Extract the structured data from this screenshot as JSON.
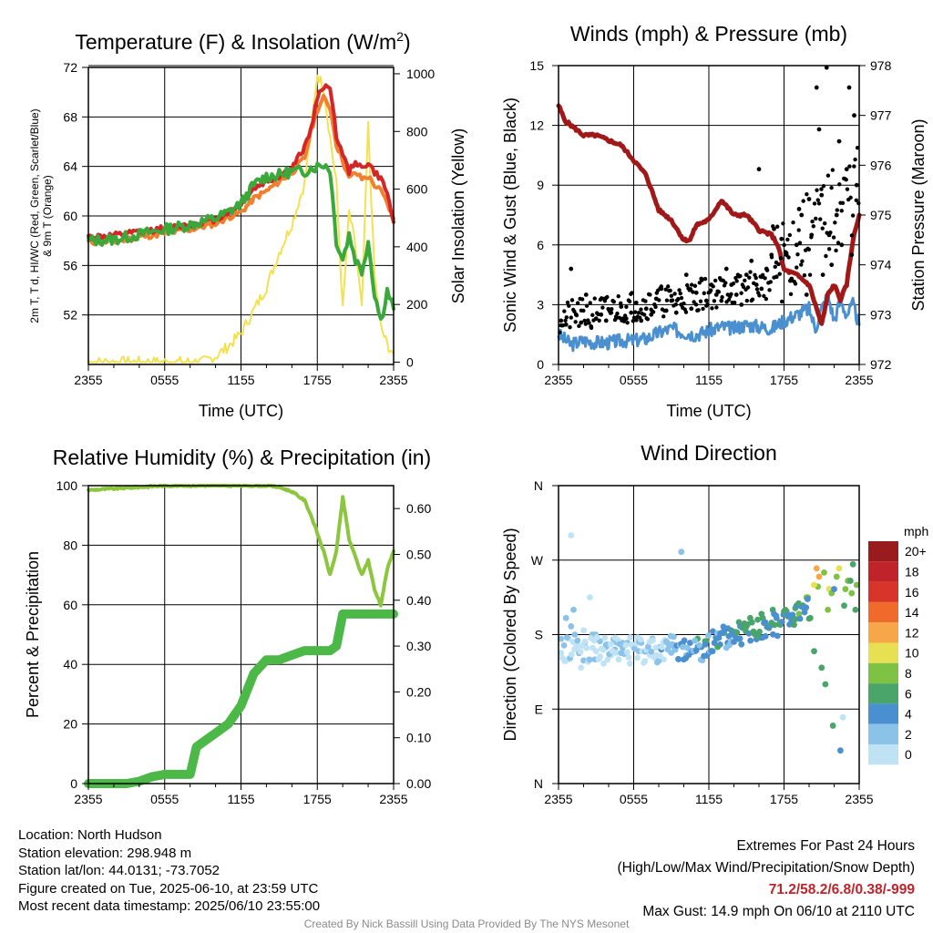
{
  "panels": {
    "temp": {
      "title": "Temperature (F) & Insolation (W/m",
      "title_sup": "2",
      "title_end": ")",
      "ylabel_lines": [
        "2m T, T d, HI/WC (Red, Green, Scarlet/Blue)",
        "& 9m T (Orange)"
      ],
      "ylabel_right": "Solar Insolation (Yellow)",
      "xlabel": "Time (UTC)"
    },
    "wind": {
      "title": "Winds (mph) & Pressure (mb)",
      "ylabel_left": "Sonic Wind & Gust (Blue, Black)",
      "ylabel_right": "Station Pressure (Maroon)",
      "xlabel": "Time (UTC)"
    },
    "rh": {
      "title": "Relative Humidity (%) & Precipitation (in)",
      "ylabel_left": "Percent & Precipitation"
    },
    "dir": {
      "title": "Wind Direction",
      "ylabel_left": "Direction (Colored By Speed)"
    }
  },
  "info": {
    "location": "Location: North Hudson",
    "elevation": "Station elevation: 298.948 m",
    "latlon": "Station lat/lon: 44.0131; -73.7052",
    "created": "Figure created on Tue, 2025-06-10, at 23:59 UTC",
    "recent": "Most recent data timestamp: 2025/06/10 23:55:00"
  },
  "extremes": {
    "line1": "Extremes For Past 24 Hours",
    "line2": "(High/Low/Max Wind/Precipitation/Snow Depth)",
    "values": "71.2/58.2/6.8/0.38/-999",
    "gust": "Max Gust: 14.9 mph On 06/10 at 2110 UTC"
  },
  "credit": "Created By Nick Bassill Using Data Provided By The NYS Mesonet",
  "colors": {
    "temp": "#d42626",
    "dewpoint": "#3aa83a",
    "temp9m": "#f08030",
    "solar": "#f2e150",
    "wind": "#4a90d0",
    "gust": "#000000",
    "pressure": "#a01818",
    "rh": "#8cc63f",
    "precip": "#4cb848"
  },
  "chart_data": [
    {
      "type": "line",
      "panel": "temp",
      "x_ticks": [
        "2355",
        "0555",
        "1155",
        "1755",
        "2355"
      ],
      "ylim": [
        48,
        72
      ],
      "y_ticks": [
        52,
        56,
        60,
        64,
        68,
        72
      ],
      "y2lim": [
        0,
        1000
      ],
      "y2_ticks": [
        0,
        200,
        400,
        600,
        800,
        1000
      ],
      "x_hours": [
        0,
        2,
        4,
        6,
        8,
        10,
        11,
        12,
        13,
        14,
        15,
        16,
        17,
        17.5,
        18,
        18.5,
        19,
        19.5,
        20,
        20.5,
        21,
        21.5,
        22,
        22.5,
        23,
        23.5,
        24
      ],
      "series": [
        {
          "key": "temp",
          "values": [
            58.3,
            58.4,
            58.7,
            59.0,
            59.3,
            59.7,
            60.3,
            61.0,
            62.2,
            62.8,
            63.2,
            63.8,
            65.6,
            67.0,
            69.5,
            70.5,
            70.5,
            66.5,
            65.0,
            63.5,
            64.5,
            63.8,
            64.3,
            63.5,
            63.0,
            61.8,
            59.5
          ]
        },
        {
          "key": "dewpoint",
          "values": [
            58.0,
            58.1,
            58.5,
            58.9,
            59.3,
            59.8,
            60.3,
            61.0,
            62.5,
            63.2,
            63.3,
            63.6,
            63.6,
            63.9,
            64.0,
            64.2,
            63.8,
            58.0,
            56.5,
            58.5,
            56.5,
            55.5,
            58.0,
            53.8,
            51.5,
            54.0,
            52.5
          ]
        },
        {
          "key": "temp9m",
          "values": [
            57.9,
            57.9,
            58.3,
            58.6,
            58.9,
            59.4,
            59.9,
            60.3,
            61.4,
            62.0,
            62.8,
            63.5,
            64.7,
            66.8,
            68.6,
            69.5,
            68.8,
            65.8,
            64.5,
            63.0,
            63.5,
            63.0,
            63.2,
            62.5,
            62.0,
            61.0,
            59.8
          ]
        }
      ],
      "solar": {
        "x_hours": [
          0,
          6,
          9,
          10,
          11,
          12,
          13,
          14,
          15,
          16,
          17,
          17.5,
          18,
          18.5,
          19,
          19.5,
          20,
          20.5,
          21,
          21.5,
          22,
          22.5,
          23,
          23.5,
          24
        ],
        "values": [
          0,
          0,
          0,
          20,
          55,
          100,
          180,
          260,
          380,
          480,
          620,
          800,
          1000,
          950,
          780,
          620,
          180,
          520,
          400,
          180,
          820,
          300,
          120,
          60,
          30
        ]
      }
    },
    {
      "type": "line",
      "panel": "wind",
      "x_ticks": [
        "2355",
        "0555",
        "1155",
        "1755",
        "2355"
      ],
      "ylim": [
        0,
        15
      ],
      "y_ticks": [
        0,
        3,
        6,
        9,
        12,
        15
      ],
      "y2lim": [
        972,
        978
      ],
      "y2_ticks": [
        972,
        973,
        974,
        975,
        976,
        977,
        978
      ],
      "pressure": {
        "x_hours": [
          0,
          0.5,
          1,
          2,
          3,
          4,
          5,
          6,
          7,
          8,
          9,
          10,
          10.5,
          11,
          12,
          13,
          14,
          15,
          16,
          17,
          17.5,
          18,
          19,
          19.5,
          20,
          20.5,
          21,
          21.5,
          22,
          22.5,
          23,
          23.5,
          24
        ],
        "values": [
          977.2,
          976.9,
          976.8,
          976.6,
          976.6,
          976.5,
          976.4,
          976.1,
          975.8,
          975.1,
          974.9,
          974.5,
          974.5,
          974.8,
          974.9,
          975.3,
          975.0,
          975.0,
          974.7,
          974.6,
          974.4,
          973.9,
          973.8,
          973.7,
          973.6,
          973.2,
          972.8,
          973.4,
          973.6,
          973.3,
          973.6,
          974.5,
          975.0
        ]
      },
      "wind": {
        "x_hours": [
          0,
          1,
          2,
          3,
          4,
          5,
          6,
          7,
          8,
          9,
          10,
          11,
          12,
          13,
          14,
          15,
          16,
          17,
          18,
          19,
          20,
          20.5,
          21,
          21.5,
          22,
          22.5,
          23,
          23.5,
          24
        ],
        "values": [
          1.5,
          1.0,
          1.2,
          1.1,
          1.1,
          1.2,
          1.2,
          1.3,
          1.6,
          1.8,
          1.6,
          1.5,
          1.7,
          1.9,
          1.8,
          2.0,
          1.9,
          1.8,
          2.2,
          2.5,
          2.8,
          1.8,
          2.8,
          3.5,
          2.2,
          3.2,
          2.5,
          3.0,
          2.0
        ]
      },
      "gust": {
        "x_hours": [
          0.2,
          0.6,
          1.0,
          1.4,
          1.8,
          2.2,
          2.6,
          3.0,
          3.4,
          3.8,
          4.2,
          4.6,
          5.0,
          5.4,
          5.8,
          6.2,
          6.6,
          7.0,
          7.4,
          7.8,
          8.2,
          8.6,
          9.0,
          9.4,
          9.8,
          10.2,
          10.6,
          11.0,
          11.4,
          11.8,
          12.2,
          12.6,
          13.0,
          13.4,
          13.8,
          14.2,
          14.6,
          15.0,
          15.4,
          15.8,
          16.2,
          16.6,
          17.0,
          17.4,
          17.8,
          18.2,
          18.6,
          19.0,
          19.4,
          19.8,
          20.2,
          20.6,
          21.0,
          21.4,
          21.8,
          22.2,
          22.6,
          23.0,
          23.4,
          23.8,
          18.5,
          19.2,
          20.0,
          21.1,
          21.6,
          22.4,
          23.2,
          23.6,
          16.0,
          17.2,
          20.8
        ],
        "values": [
          2.2,
          2.0,
          4.8,
          2.5,
          2.1,
          3.5,
          1.9,
          2.3,
          2.5,
          2.2,
          2.6,
          2.4,
          2.9,
          2.3,
          2.6,
          3.1,
          2.2,
          2.8,
          2.5,
          3.3,
          3.8,
          2.7,
          3.2,
          2.6,
          3.0,
          4.5,
          2.8,
          3.6,
          4.3,
          3.2,
          4.0,
          3.5,
          3.2,
          4.8,
          4.0,
          3.5,
          3.0,
          4.5,
          5.2,
          4.0,
          3.8,
          4.8,
          5.5,
          4.4,
          6.3,
          5.5,
          4.3,
          6.0,
          7.5,
          3.5,
          6.5,
          13.9,
          8.5,
          14.9,
          5.0,
          7.5,
          6.0,
          9.8,
          5.5,
          9.0,
          4.2,
          7.8,
          8.3,
          4.5,
          6.5,
          11.2,
          13.9,
          12.5,
          9.8,
          6.8,
          11.8
        ]
      }
    },
    {
      "type": "line",
      "panel": "rh",
      "x_ticks": [
        "2355",
        "0555",
        "1155",
        "1755",
        "2355"
      ],
      "ylim": [
        0,
        100
      ],
      "y_ticks": [
        0,
        20,
        40,
        60,
        80,
        100
      ],
      "y2lim": [
        0,
        0.65
      ],
      "y2_ticks": [
        "0.00",
        "0.10",
        "0.20",
        "0.30",
        "0.40",
        "0.50",
        "0.60"
      ],
      "rh": {
        "x_hours": [
          0,
          2,
          4,
          6,
          8,
          10,
          12,
          14,
          15,
          16,
          17,
          17.5,
          18,
          18.5,
          19,
          19.5,
          20,
          20.5,
          21,
          21.5,
          22,
          22.5,
          23,
          23.5,
          24
        ],
        "values": [
          98.5,
          99,
          99.5,
          100,
          100,
          100,
          100,
          100,
          99.5,
          98,
          95,
          90,
          84,
          78,
          70,
          78,
          96,
          82,
          76,
          70,
          75,
          65,
          60,
          72,
          78
        ]
      },
      "precip": {
        "x_hours": [
          0,
          3,
          4,
          5,
          6,
          7,
          8,
          8.5,
          9,
          10,
          11,
          12,
          13,
          14,
          15,
          16,
          17,
          18,
          19,
          19.5,
          20,
          21,
          22,
          23,
          24
        ],
        "values": [
          0.0,
          0.0,
          0.005,
          0.015,
          0.02,
          0.02,
          0.02,
          0.08,
          0.09,
          0.11,
          0.13,
          0.17,
          0.24,
          0.27,
          0.27,
          0.28,
          0.29,
          0.29,
          0.29,
          0.3,
          0.37,
          0.37,
          0.37,
          0.37,
          0.37
        ]
      }
    },
    {
      "type": "scatter",
      "panel": "dir",
      "x_ticks": [
        "2355",
        "0555",
        "1155",
        "1755",
        "2355"
      ],
      "ylim": [
        0,
        360
      ],
      "y_ticks": [
        "N",
        "E",
        "S",
        "W",
        "N"
      ],
      "color_scale": {
        "unit": "mph",
        "labels": [
          "0",
          "2",
          "4",
          "6",
          "8",
          "10",
          "12",
          "14",
          "16",
          "18",
          "20+"
        ],
        "colors": [
          "#bfe3f5",
          "#8bc2e8",
          "#4a90d0",
          "#4aa56a",
          "#7dc242",
          "#e8e053",
          "#f7a649",
          "#ef6a2b",
          "#d8352a",
          "#c1232a",
          "#9a1b1e"
        ]
      },
      "x_hours": [
        0.2,
        0.5,
        0.8,
        1.0,
        1.2,
        1.5,
        1.8,
        2.1,
        2.4,
        2.7,
        3.0,
        3.3,
        3.6,
        3.9,
        4.2,
        4.5,
        4.8,
        5.1,
        5.4,
        5.7,
        6.0,
        6.3,
        6.6,
        6.9,
        7.2,
        7.5,
        7.8,
        8.1,
        8.4,
        8.7,
        9.0,
        9.3,
        9.6,
        9.9,
        10.2,
        10.5,
        10.8,
        11.1,
        11.4,
        11.7,
        12.0,
        12.3,
        12.6,
        12.9,
        13.2,
        13.5,
        13.8,
        14.1,
        14.4,
        14.7,
        15.0,
        15.3,
        15.6,
        15.9,
        16.2,
        16.5,
        16.8,
        17.1,
        17.4,
        17.7,
        18.0,
        18.3,
        18.6,
        18.9,
        19.2,
        19.5,
        19.8,
        20.1,
        20.4,
        20.7,
        21.0,
        21.3,
        21.6,
        21.9,
        22.2,
        22.5,
        22.8,
        23.1,
        23.4,
        23.7,
        0.6,
        1.3,
        2.0,
        2.9,
        3.8,
        4.6,
        5.5,
        6.4,
        7.3,
        8.2,
        9.1,
        10.0,
        10.9,
        11.8,
        12.7,
        13.6,
        14.5,
        15.4,
        16.3,
        17.2,
        18.1,
        19.0,
        19.9,
        20.4,
        20.8,
        21.2,
        21.8,
        22.4,
        22.9,
        23.3,
        23.8,
        1.0,
        2.5,
        9.8,
        19.5,
        20.6,
        21.5,
        22.0,
        22.7,
        23.5
      ],
      "values": [
        158,
        148,
        175,
        190,
        210,
        165,
        140,
        170,
        150,
        180,
        160,
        172,
        145,
        168,
        155,
        162,
        150,
        170,
        158,
        145,
        165,
        152,
        170,
        148,
        160,
        175,
        155,
        165,
        150,
        170,
        158,
        163,
        150,
        168,
        155,
        170,
        160,
        175,
        165,
        172,
        158,
        160,
        175,
        168,
        182,
        170,
        185,
        178,
        195,
        188,
        190,
        200,
        182,
        198,
        205,
        195,
        188,
        210,
        200,
        195,
        208,
        202,
        198,
        212,
        205,
        215,
        225,
        200,
        160,
        238,
        140,
        120,
        235,
        70,
        250,
        40,
        215,
        245,
        230,
        210,
        200,
        180,
        185,
        150,
        165,
        158,
        170,
        160,
        155,
        162,
        168,
        150,
        160,
        172,
        165,
        178,
        190,
        195,
        200,
        205,
        210,
        215,
        225,
        240,
        250,
        255,
        230,
        260,
        235,
        245,
        240,
        300,
        225,
        280,
        215,
        260,
        210,
        235,
        80,
        265
      ],
      "speeds": [
        0,
        0,
        0,
        1,
        1,
        0,
        0,
        1,
        0,
        1,
        0,
        1,
        0,
        1,
        0,
        1,
        0,
        1,
        0,
        0,
        1,
        0,
        1,
        0,
        1,
        1,
        0,
        1,
        0,
        1,
        1,
        2,
        1,
        2,
        1,
        2,
        2,
        3,
        2,
        3,
        2,
        2,
        3,
        2,
        3,
        2,
        3,
        2,
        3,
        2,
        3,
        3,
        2,
        3,
        3,
        2,
        3,
        3,
        2,
        3,
        3,
        3,
        2,
        3,
        4,
        4,
        4,
        3,
        3,
        4,
        3,
        3,
        5,
        3,
        4,
        2,
        3,
        4,
        4,
        3,
        1,
        1,
        0,
        1,
        1,
        0,
        1,
        1,
        0,
        2,
        1,
        2,
        2,
        3,
        3,
        2,
        2,
        3,
        3,
        2,
        3,
        3,
        4,
        5,
        6,
        4,
        4,
        5,
        4,
        3,
        4,
        0,
        0,
        1,
        3,
        6,
        4,
        2,
        0,
        3
      ]
    }
  ]
}
